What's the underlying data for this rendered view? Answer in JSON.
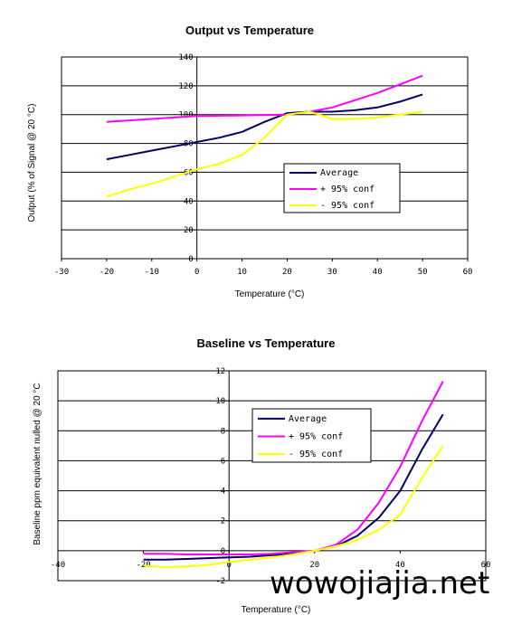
{
  "chart_data": [
    {
      "type": "line",
      "title": "Output vs Temperature",
      "xlabel": "Temperature (°C)",
      "ylabel": "Output (% of Signal @ 20 °C)",
      "xlim": [
        -30,
        60
      ],
      "ylim": [
        0,
        140
      ],
      "xticks": [
        -30,
        -20,
        -10,
        0,
        10,
        20,
        30,
        40,
        50,
        60
      ],
      "xtick_labels": [
        "-30",
        "-20",
        "-10",
        "0",
        "10",
        "20",
        "30",
        "40",
        "50",
        "60"
      ],
      "yticks": [
        0,
        20,
        40,
        60,
        80,
        100,
        120,
        140
      ],
      "ytick_labels": [
        "0",
        "20",
        "40",
        "60",
        "80",
        "100",
        "120",
        "140"
      ],
      "grid": "horizontal",
      "legend_position": "center-right",
      "series": [
        {
          "name": "Average",
          "color": "#000066",
          "x": [
            -20,
            -15,
            -10,
            -5,
            0,
            5,
            10,
            15,
            20,
            25,
            30,
            35,
            40,
            45,
            50
          ],
          "y": [
            69,
            72,
            75,
            78,
            81,
            84,
            88,
            95,
            101,
            102,
            102,
            103,
            105,
            109,
            114
          ]
        },
        {
          "name": "+ 95% conf",
          "color": "#ff00ff",
          "x": [
            -20,
            -15,
            -10,
            -5,
            0,
            2,
            20,
            25,
            30,
            35,
            40,
            45,
            50
          ],
          "y": [
            95,
            96,
            97,
            98,
            99,
            99,
            100,
            102,
            105,
            110,
            115,
            121,
            127
          ]
        },
        {
          "name": "- 95% conf",
          "color": "#ffff00",
          "x": [
            -20,
            -15,
            -10,
            -5,
            0,
            5,
            10,
            15,
            20,
            25,
            30,
            35,
            40,
            45,
            50
          ],
          "y": [
            43,
            48,
            52,
            57,
            62,
            66,
            72,
            84,
            100,
            102,
            97,
            97,
            98,
            100,
            102
          ]
        }
      ]
    },
    {
      "type": "line",
      "title": "Baseline vs Temperature",
      "xlabel": "Temperature (°C)",
      "ylabel": "Baseline ppm equivalent nulled @ 20 °C",
      "xlim": [
        -40,
        60
      ],
      "ylim": [
        -2,
        12
      ],
      "xticks": [
        -40,
        -20,
        0,
        20,
        40,
        60
      ],
      "xtick_labels": [
        "-40",
        "-20",
        "0",
        "20",
        "40",
        "60"
      ],
      "yticks": [
        -2,
        0,
        2,
        4,
        6,
        8,
        10,
        12
      ],
      "ytick_labels": [
        "-2",
        "0",
        "2",
        "4",
        "6",
        "8",
        "10",
        "12"
      ],
      "grid": "horizontal",
      "legend_position": "top-center",
      "series": [
        {
          "name": "Average",
          "color": "#000066",
          "x": [
            -20,
            -15,
            -10,
            -5,
            0,
            5,
            10,
            15,
            20,
            25,
            30,
            35,
            40,
            45,
            50
          ],
          "y": [
            -0.6,
            -0.6,
            -0.55,
            -0.5,
            -0.45,
            -0.4,
            -0.3,
            -0.2,
            0,
            0.3,
            1.0,
            2.2,
            4.0,
            6.7,
            9.1
          ]
        },
        {
          "name": "+ 95% conf",
          "color": "#ff00ff",
          "x": [
            -20,
            -15,
            -10,
            -5,
            0,
            5,
            10,
            15,
            20,
            25,
            30,
            35,
            40,
            45,
            50
          ],
          "y": [
            -0.2,
            -0.2,
            -0.25,
            -0.25,
            -0.25,
            -0.25,
            -0.2,
            -0.1,
            0,
            0.4,
            1.4,
            3.2,
            5.6,
            8.6,
            11.3
          ]
        },
        {
          "name": "- 95% conf",
          "color": "#ffff00",
          "x": [
            -20,
            -15,
            -10,
            -5,
            0,
            5,
            10,
            15,
            20,
            25,
            30,
            35,
            40,
            45,
            50
          ],
          "y": [
            -1.0,
            -1.1,
            -1.05,
            -0.95,
            -0.75,
            -0.6,
            -0.45,
            -0.25,
            0,
            0.3,
            0.7,
            1.4,
            2.4,
            4.8,
            7.0
          ]
        }
      ]
    }
  ],
  "legend_labels": [
    "Average",
    "+ 95% conf",
    "- 95% conf"
  ],
  "watermark": "wowojiajia.net"
}
